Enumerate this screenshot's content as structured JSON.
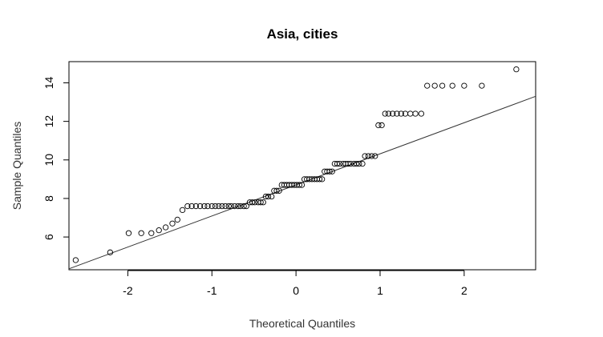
{
  "chart_data": {
    "type": "scatter",
    "title": "Asia, cities",
    "xlabel": "Theoretical Quantiles",
    "ylabel": "Sample Quantiles",
    "xlim": [
      -2.7,
      2.85
    ],
    "ylim": [
      4.3,
      15.1
    ],
    "x_ticks": [
      -2,
      -1,
      0,
      1,
      2
    ],
    "y_ticks": [
      6,
      8,
      10,
      12,
      14
    ],
    "x_tick_labels": [
      "-2",
      "-1",
      "0",
      "1",
      "2"
    ],
    "y_tick_labels": [
      "6",
      "8",
      "10",
      "12",
      "14"
    ],
    "grid": false,
    "point_style": "open-circle",
    "reference_line": {
      "x1": -2.7,
      "y1": 4.35,
      "x2": 2.85,
      "y2": 13.3
    },
    "points": [
      {
        "x": -2.62,
        "y": 4.8
      },
      {
        "x": -2.21,
        "y": 5.2
      },
      {
        "x": -1.99,
        "y": 6.2
      },
      {
        "x": -1.84,
        "y": 6.2
      },
      {
        "x": -1.72,
        "y": 6.2
      },
      {
        "x": -1.63,
        "y": 6.35
      },
      {
        "x": -1.55,
        "y": 6.5
      },
      {
        "x": -1.47,
        "y": 6.7
      },
      {
        "x": -1.41,
        "y": 6.9
      },
      {
        "x": -1.35,
        "y": 7.4
      },
      {
        "x": -1.29,
        "y": 7.6
      },
      {
        "x": -1.24,
        "y": 7.6
      },
      {
        "x": -1.19,
        "y": 7.6
      },
      {
        "x": -1.14,
        "y": 7.6
      },
      {
        "x": -1.09,
        "y": 7.6
      },
      {
        "x": -1.05,
        "y": 7.6
      },
      {
        "x": -1.0,
        "y": 7.6
      },
      {
        "x": -0.96,
        "y": 7.6
      },
      {
        "x": -0.92,
        "y": 7.6
      },
      {
        "x": -0.88,
        "y": 7.6
      },
      {
        "x": -0.84,
        "y": 7.6
      },
      {
        "x": -0.8,
        "y": 7.6
      },
      {
        "x": -0.77,
        "y": 7.6
      },
      {
        "x": -0.73,
        "y": 7.6
      },
      {
        "x": -0.69,
        "y": 7.6
      },
      {
        "x": -0.66,
        "y": 7.6
      },
      {
        "x": -0.62,
        "y": 7.6
      },
      {
        "x": -0.59,
        "y": 7.6
      },
      {
        "x": -0.55,
        "y": 7.8
      },
      {
        "x": -0.52,
        "y": 7.8
      },
      {
        "x": -0.49,
        "y": 7.8
      },
      {
        "x": -0.45,
        "y": 7.8
      },
      {
        "x": -0.42,
        "y": 7.8
      },
      {
        "x": -0.39,
        "y": 7.8
      },
      {
        "x": -0.36,
        "y": 8.1
      },
      {
        "x": -0.33,
        "y": 8.1
      },
      {
        "x": -0.29,
        "y": 8.1
      },
      {
        "x": -0.26,
        "y": 8.4
      },
      {
        "x": -0.23,
        "y": 8.4
      },
      {
        "x": -0.2,
        "y": 8.4
      },
      {
        "x": -0.17,
        "y": 8.7
      },
      {
        "x": -0.14,
        "y": 8.7
      },
      {
        "x": -0.11,
        "y": 8.7
      },
      {
        "x": -0.08,
        "y": 8.7
      },
      {
        "x": -0.05,
        "y": 8.7
      },
      {
        "x": -0.02,
        "y": 8.7
      },
      {
        "x": 0.01,
        "y": 8.7
      },
      {
        "x": 0.04,
        "y": 8.7
      },
      {
        "x": 0.07,
        "y": 8.7
      },
      {
        "x": 0.1,
        "y": 9.0
      },
      {
        "x": 0.13,
        "y": 9.0
      },
      {
        "x": 0.16,
        "y": 9.0
      },
      {
        "x": 0.19,
        "y": 9.0
      },
      {
        "x": 0.22,
        "y": 9.0
      },
      {
        "x": 0.25,
        "y": 9.0
      },
      {
        "x": 0.28,
        "y": 9.0
      },
      {
        "x": 0.31,
        "y": 9.0
      },
      {
        "x": 0.34,
        "y": 9.4
      },
      {
        "x": 0.37,
        "y": 9.4
      },
      {
        "x": 0.4,
        "y": 9.4
      },
      {
        "x": 0.43,
        "y": 9.4
      },
      {
        "x": 0.46,
        "y": 9.8
      },
      {
        "x": 0.49,
        "y": 9.8
      },
      {
        "x": 0.52,
        "y": 9.8
      },
      {
        "x": 0.56,
        "y": 9.8
      },
      {
        "x": 0.59,
        "y": 9.8
      },
      {
        "x": 0.62,
        "y": 9.8
      },
      {
        "x": 0.65,
        "y": 9.8
      },
      {
        "x": 0.69,
        "y": 9.8
      },
      {
        "x": 0.72,
        "y": 9.8
      },
      {
        "x": 0.75,
        "y": 9.8
      },
      {
        "x": 0.79,
        "y": 9.8
      },
      {
        "x": 0.82,
        "y": 10.2
      },
      {
        "x": 0.86,
        "y": 10.2
      },
      {
        "x": 0.9,
        "y": 10.2
      },
      {
        "x": 0.94,
        "y": 10.2
      },
      {
        "x": 0.98,
        "y": 11.8
      },
      {
        "x": 1.02,
        "y": 11.8
      },
      {
        "x": 1.06,
        "y": 12.4
      },
      {
        "x": 1.1,
        "y": 12.4
      },
      {
        "x": 1.15,
        "y": 12.4
      },
      {
        "x": 1.2,
        "y": 12.4
      },
      {
        "x": 1.25,
        "y": 12.4
      },
      {
        "x": 1.3,
        "y": 12.4
      },
      {
        "x": 1.36,
        "y": 12.4
      },
      {
        "x": 1.42,
        "y": 12.4
      },
      {
        "x": 1.49,
        "y": 12.4
      },
      {
        "x": 1.56,
        "y": 13.85
      },
      {
        "x": 1.65,
        "y": 13.85
      },
      {
        "x": 1.74,
        "y": 13.85
      },
      {
        "x": 1.86,
        "y": 13.85
      },
      {
        "x": 2.0,
        "y": 13.85
      },
      {
        "x": 2.21,
        "y": 13.85
      },
      {
        "x": 2.62,
        "y": 14.7
      }
    ]
  }
}
